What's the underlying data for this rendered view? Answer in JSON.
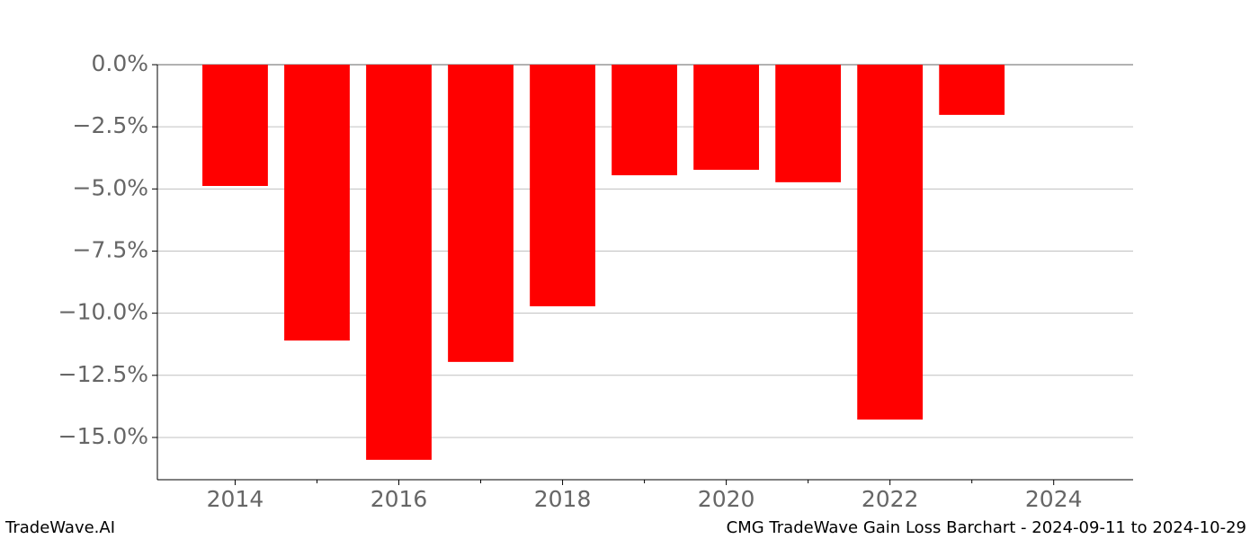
{
  "chart_data": {
    "type": "bar",
    "title": "CMG TradeWave Gain Loss Barchart - 2024-09-11 to 2024-10-29",
    "brand": "TradeWave.AI",
    "x": [
      2014,
      2015,
      2016,
      2017,
      2018,
      2019,
      2020,
      2021,
      2022,
      2023
    ],
    "values": [
      -4.88,
      -11.1,
      -15.9,
      -11.96,
      -9.72,
      -4.45,
      -4.23,
      -4.73,
      -14.28,
      -2.02
    ],
    "color": "#ff0000",
    "xlim": [
      2013.05,
      2024.97
    ],
    "xticks": [
      2014,
      2016,
      2018,
      2020,
      2022,
      2024
    ],
    "xminorticks": [
      2015,
      2017,
      2019,
      2021,
      2023
    ],
    "ylim": [
      -16.7,
      0
    ],
    "yticks": [
      {
        "value": 0,
        "label": "0.0%"
      },
      {
        "value": -2.5,
        "label": "−2.5%"
      },
      {
        "value": -5,
        "label": "−5.0%"
      },
      {
        "value": -7.5,
        "label": "−7.5%"
      },
      {
        "value": -10,
        "label": "−10.0%"
      },
      {
        "value": -12.5,
        "label": "−12.5%"
      },
      {
        "value": -15,
        "label": "−15.0%"
      }
    ],
    "grid": true
  }
}
